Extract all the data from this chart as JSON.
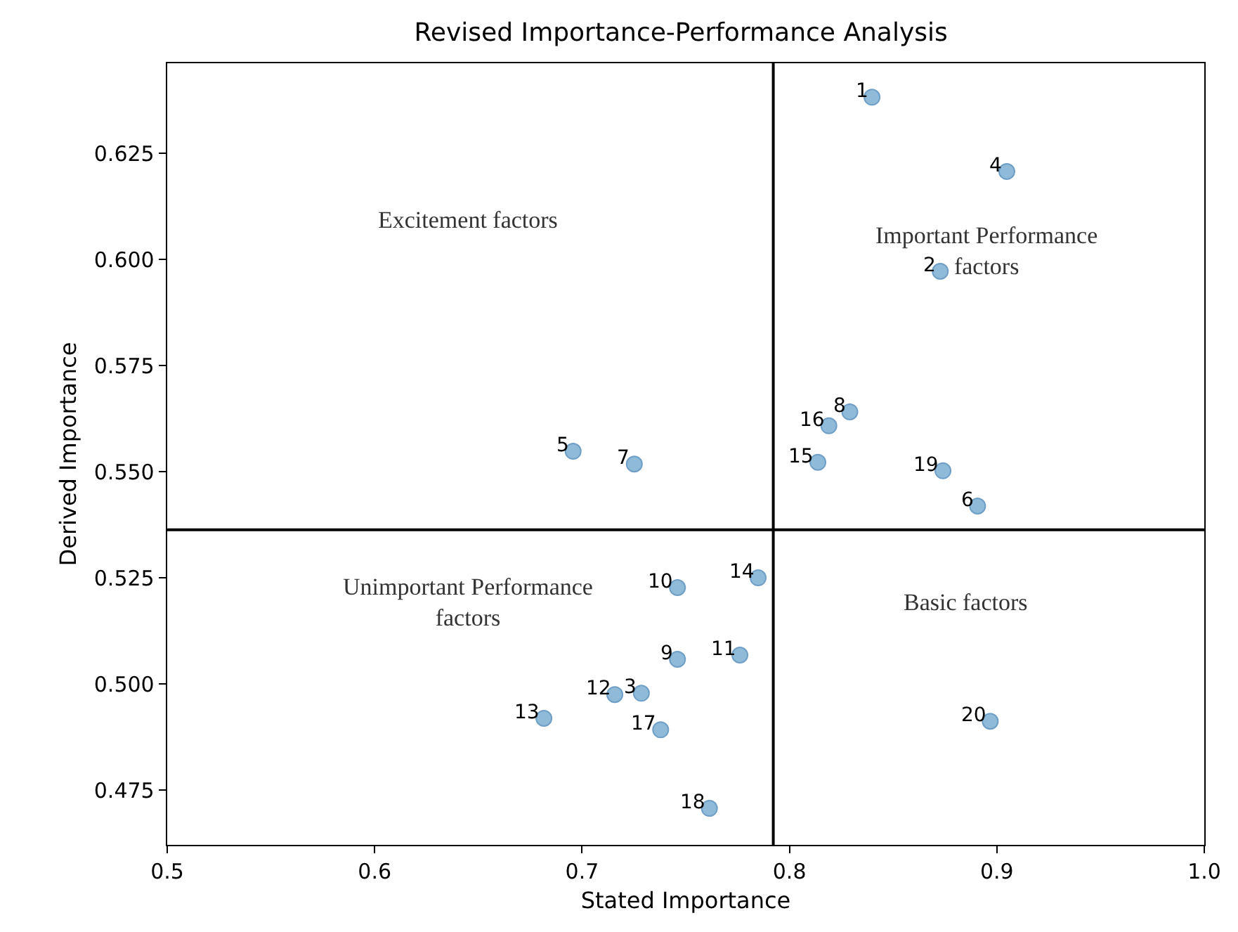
{
  "chart_data": {
    "type": "scatter",
    "title": "Revised Importance-Performance Analysis",
    "xlabel": "Stated Importance",
    "ylabel": "Derived Importance",
    "series": [
      {
        "color": "#8fbbd9",
        "x": [
          0.8398,
          0.8727,
          0.7286,
          0.9048,
          0.6957,
          0.8907,
          0.7252,
          0.8291,
          0.746,
          0.746,
          0.7761,
          0.7158,
          0.6816,
          0.7849,
          0.8137,
          0.819,
          0.7379,
          0.7614,
          0.874,
          0.8968
        ],
        "values": [
          0.6382,
          0.5972,
          0.4978,
          0.6207,
          0.5548,
          0.5419,
          0.5518,
          0.5641,
          0.5058,
          0.5227,
          0.5068,
          0.4975,
          0.4919,
          0.525,
          0.5522,
          0.5608,
          0.4892,
          0.4707,
          0.5502,
          0.4912
        ]
      }
    ],
    "marker": "circle",
    "xlim": [
      0.5,
      1.0
    ],
    "xticks": [
      0.5,
      0.6,
      0.7,
      0.8,
      0.9,
      {
        "value": 1,
        "label": "1.0"
      }
    ],
    "ylim": [
      0.4621,
      0.6462
    ],
    "yticks": [
      0.475,
      {
        "value": 0.5,
        "label": "0.500"
      },
      0.525,
      {
        "value": 0.55,
        "label": "0.550"
      },
      0.575,
      {
        "value": 0.6,
        "label": "0.600"
      },
      0.625
    ],
    "ref_lines": [
      {
        "axis": "x",
        "value": 0.7922,
        "color": "#000000"
      },
      {
        "axis": "y",
        "value": 0.5363,
        "color": "#000000"
      }
    ],
    "annotations": [
      {
        "text": "1",
        "x": 0.8398,
        "y": 0.6382
      },
      {
        "text": "2",
        "x": 0.8727,
        "y": 0.5972
      },
      {
        "text": "3",
        "x": 0.7286,
        "y": 0.4978
      },
      {
        "text": "4",
        "x": 0.9048,
        "y": 0.6207
      },
      {
        "text": "5",
        "x": 0.6957,
        "y": 0.5548
      },
      {
        "text": "6",
        "x": 0.8907,
        "y": 0.5419
      },
      {
        "text": "7",
        "x": 0.7252,
        "y": 0.5518
      },
      {
        "text": "8",
        "x": 0.8291,
        "y": 0.5641
      },
      {
        "text": "9",
        "x": 0.746,
        "y": 0.5058
      },
      {
        "text": "10",
        "x": 0.746,
        "y": 0.5227
      },
      {
        "text": "11",
        "x": 0.7761,
        "y": 0.5068
      },
      {
        "text": "12",
        "x": 0.7158,
        "y": 0.4975
      },
      {
        "text": "13",
        "x": 0.6816,
        "y": 0.4919
      },
      {
        "text": "14",
        "x": 0.7849,
        "y": 0.525
      },
      {
        "text": "15",
        "x": 0.8137,
        "y": 0.5522
      },
      {
        "text": "16",
        "x": 0.819,
        "y": 0.5608
      },
      {
        "text": "17",
        "x": 0.7379,
        "y": 0.4892
      },
      {
        "text": "18",
        "x": 0.7614,
        "y": 0.4707
      },
      {
        "text": "19",
        "x": 0.874,
        "y": 0.5502
      },
      {
        "text": "20",
        "x": 0.8968,
        "y": 0.4912
      },
      "Excitement factors",
      "Important Performance\nfactors",
      "Unimportant Performance\nfactors",
      "Basic factors"
    ]
  }
}
